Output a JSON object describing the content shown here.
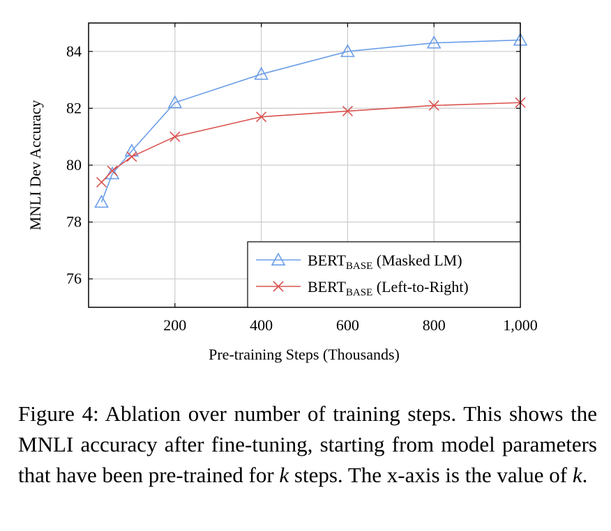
{
  "chart_data": {
    "type": "line",
    "xlabel": "Pre-training Steps (Thousands)",
    "ylabel": "MNLI Dev Accuracy",
    "xlim": [
      0,
      1000
    ],
    "ylim": [
      75,
      85
    ],
    "xticks": [
      200,
      400,
      600,
      800,
      1000
    ],
    "xtick_labels": [
      "200",
      "400",
      "600",
      "800",
      "1,000"
    ],
    "yticks": [
      76,
      78,
      80,
      82,
      84
    ],
    "ytick_labels": [
      "76",
      "78",
      "80",
      "82",
      "84"
    ],
    "grid": true,
    "legend_position": "bottom-right",
    "series": [
      {
        "name": "BERT_BASE (Masked LM)",
        "legend_main": "BERT",
        "legend_sub": "BASE",
        "legend_rest": " (Masked LM)",
        "color": "#6b9ee8",
        "marker": "triangle",
        "x": [
          30,
          55,
          100,
          200,
          400,
          600,
          800,
          1000
        ],
        "y": [
          78.7,
          79.7,
          80.5,
          82.2,
          83.2,
          84.0,
          84.3,
          84.4
        ]
      },
      {
        "name": "BERT_BASE (Left-to-Right)",
        "legend_main": "BERT",
        "legend_sub": "BASE",
        "legend_rest": " (Left-to-Right)",
        "color": "#d9534f",
        "marker": "cross",
        "x": [
          30,
          55,
          100,
          200,
          400,
          600,
          800,
          1000
        ],
        "y": [
          79.4,
          79.8,
          80.3,
          81.0,
          81.7,
          81.9,
          82.1,
          82.2
        ]
      }
    ]
  },
  "caption": {
    "part1": "Figure 4: Ablation over number of training steps. This shows the MNLI accuracy after fine-tuning, starting from model parameters that have been pre-trained for ",
    "k1": "k",
    "part2": " steps. The x-axis is the value of ",
    "k2": "k",
    "part3": "."
  }
}
